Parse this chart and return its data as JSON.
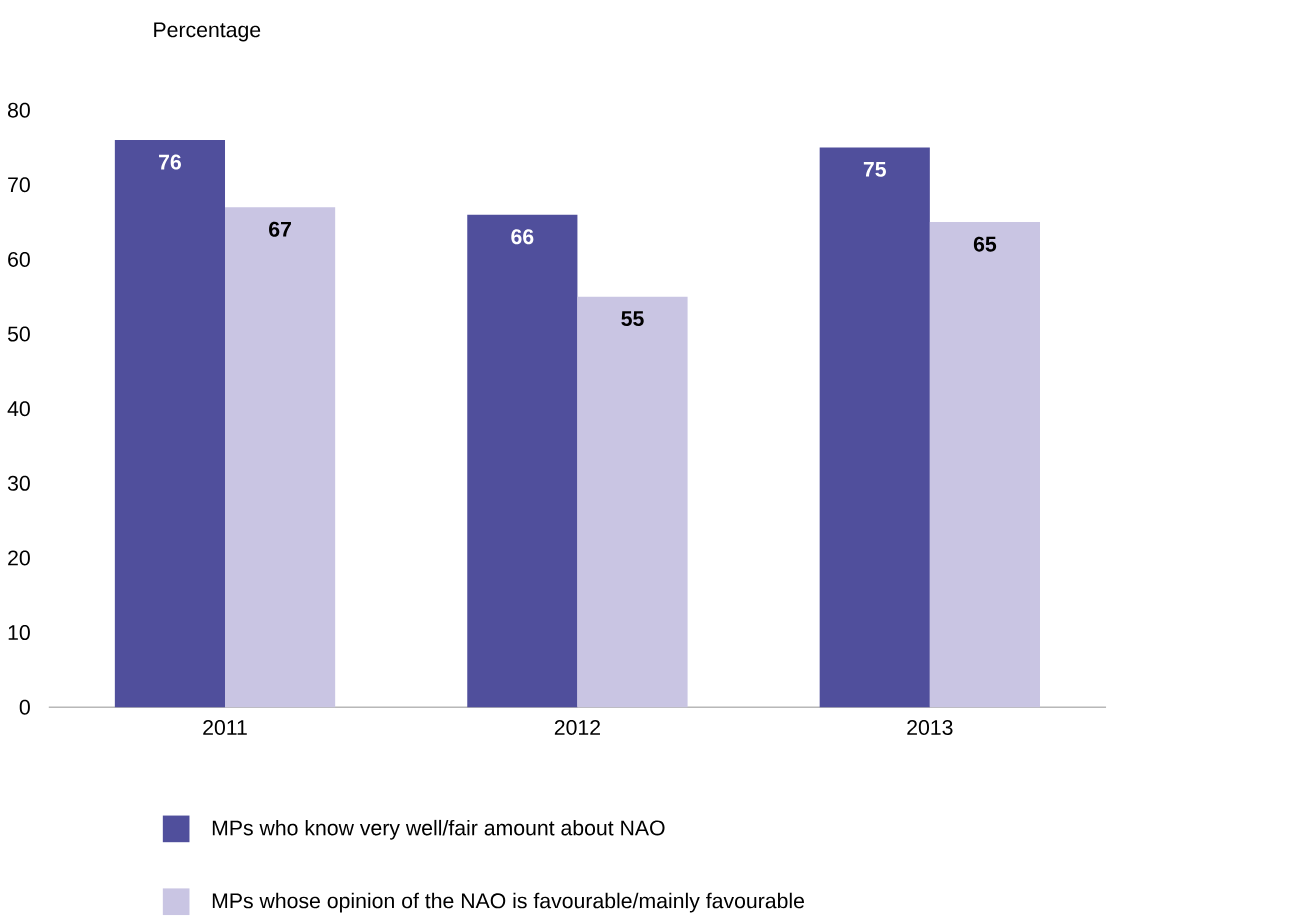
{
  "chart_data": {
    "type": "bar",
    "ylabel": "Percentage",
    "categories": [
      "2011",
      "2012",
      "2013"
    ],
    "series": [
      {
        "name": "MPs who know very well/fair amount about NAO",
        "color": "#504f9c",
        "values": [
          76,
          66,
          75
        ]
      },
      {
        "name": "MPs whose opinion of the NAO is favourable/mainly favourable",
        "color": "#c9c5e3",
        "values": [
          67,
          55,
          65
        ]
      }
    ],
    "ylim": [
      0,
      80
    ],
    "yticks": [
      0,
      10,
      20,
      30,
      40,
      50,
      60,
      70,
      80
    ],
    "data_labels": true,
    "legend": "bottom",
    "grid": false
  }
}
